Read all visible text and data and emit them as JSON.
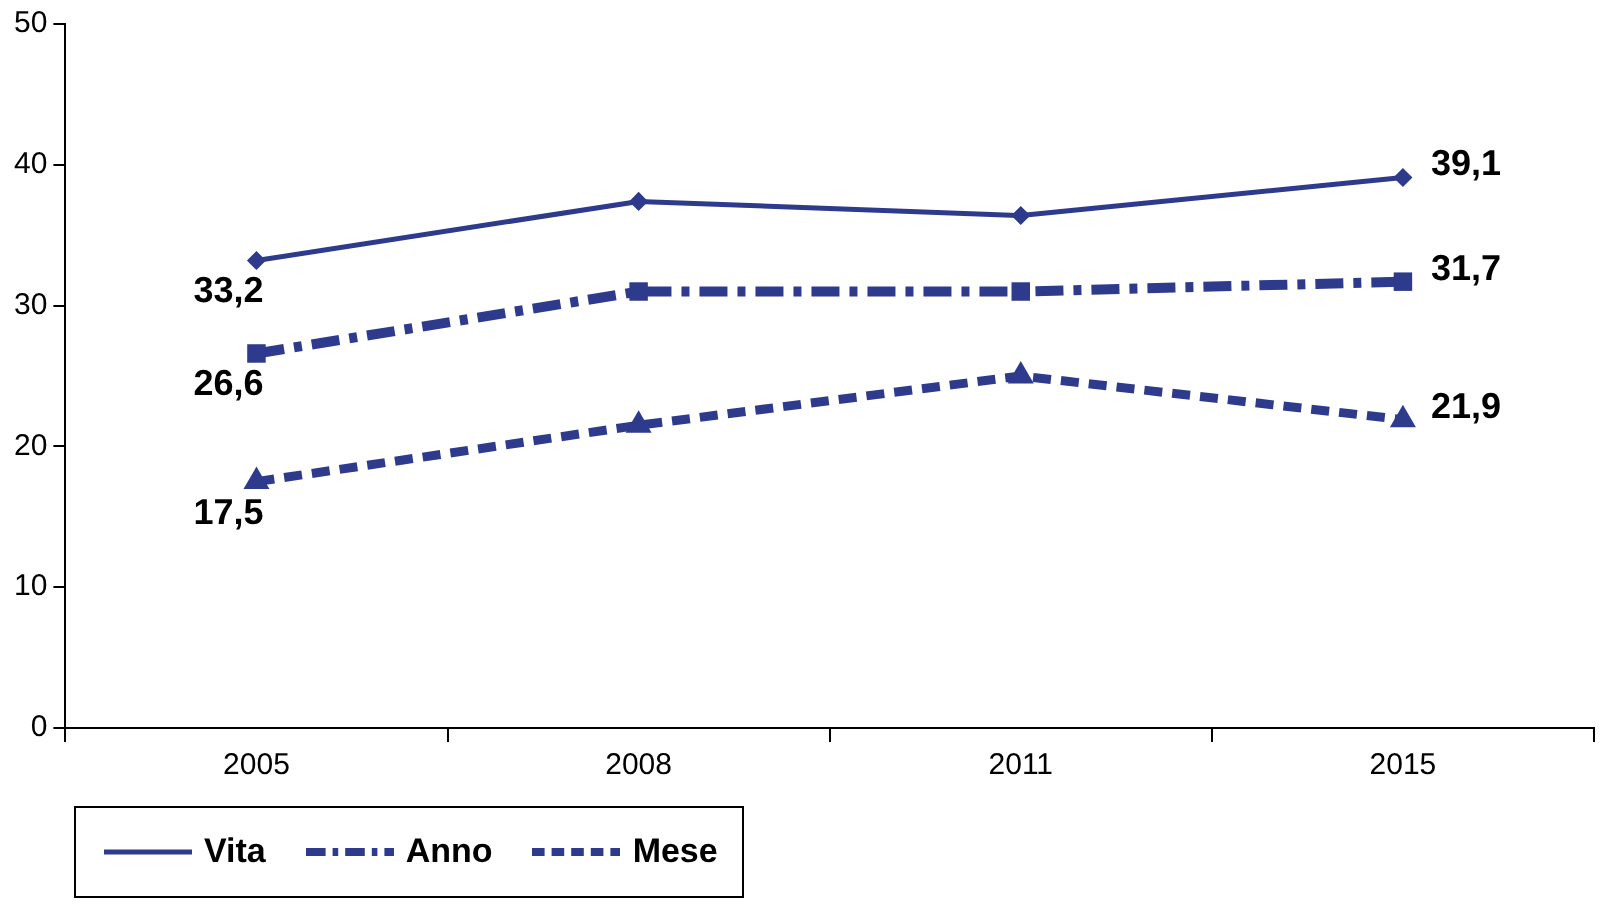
{
  "chart_data": {
    "type": "line",
    "categories": [
      "2005",
      "2008",
      "2011",
      "2015"
    ],
    "series": [
      {
        "name": "Vita",
        "color": "#2e3a8c",
        "values": [
          33.2,
          37.4,
          36.4,
          39.1
        ],
        "line_style": "solid",
        "marker": "diamond",
        "value_labels": [
          "33,2",
          null,
          null,
          "39,1"
        ]
      },
      {
        "name": "Anno",
        "color": "#2e3a8c",
        "values": [
          26.6,
          31,
          31,
          31.7
        ],
        "line_style": "dashdot",
        "marker": "square",
        "value_labels": [
          "26,6",
          null,
          null,
          "31,7"
        ]
      },
      {
        "name": "Mese",
        "color": "#2e3a8c",
        "values": [
          17.5,
          21.5,
          25,
          21.9
        ],
        "line_style": "dashed",
        "marker": "triangle",
        "value_labels": [
          "17,5",
          null,
          null,
          "21,9"
        ]
      }
    ],
    "ylim": [
      0,
      50
    ],
    "yticks": [
      0,
      10,
      20,
      30,
      40,
      50
    ],
    "grid": false,
    "legend": "bottom left"
  }
}
